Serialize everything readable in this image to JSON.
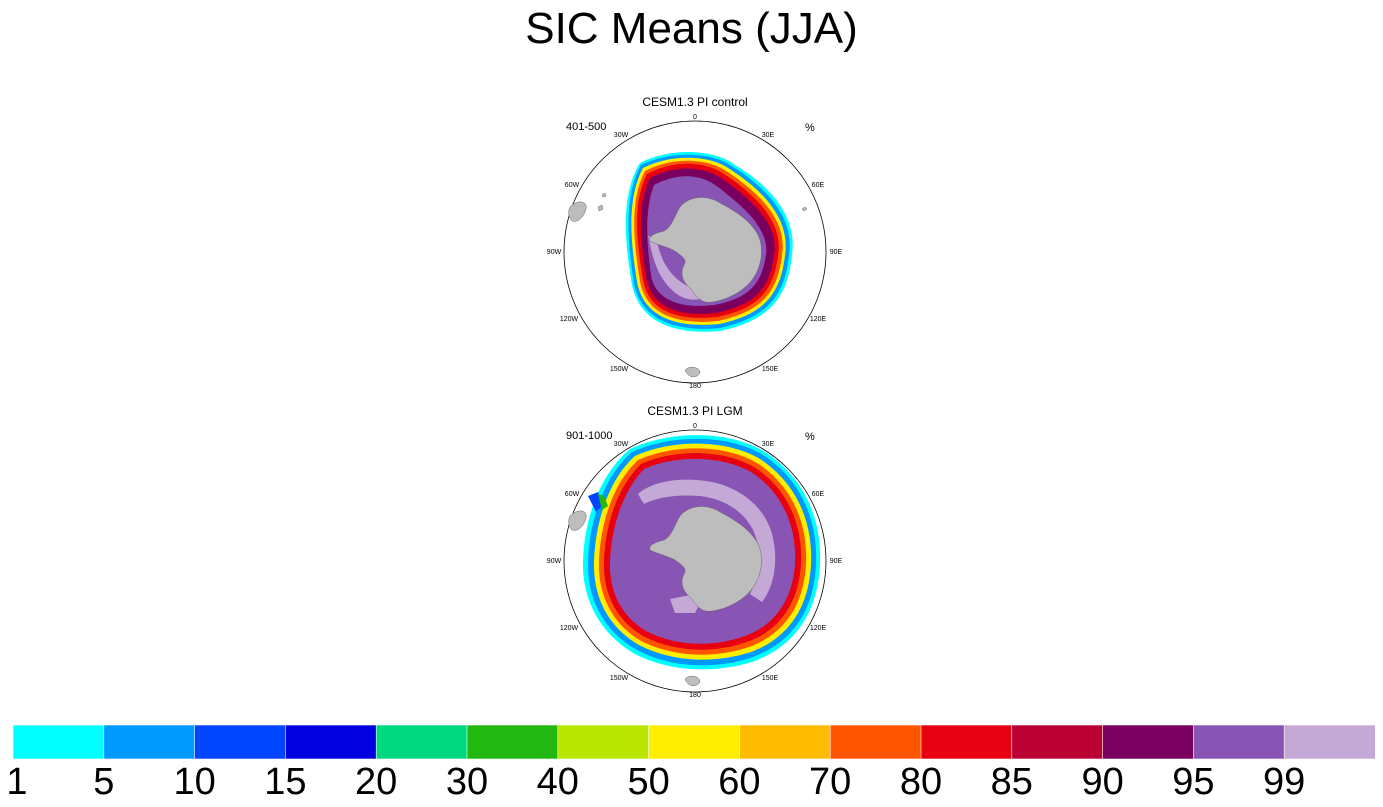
{
  "title": "SIC Means (JJA)",
  "panels": [
    {
      "title": "CESM1.3 PI control",
      "period": "401-500",
      "unit": "%"
    },
    {
      "title": "CESM1.3 PI LGM",
      "period": "901-1000",
      "unit": "%"
    }
  ],
  "longitude_labels": [
    "0",
    "30E",
    "60E",
    "90E",
    "120E",
    "150E",
    "180",
    "150W",
    "120W",
    "90W",
    "60W",
    "30W"
  ],
  "colorbar": {
    "tick_labels": [
      "1",
      "5",
      "10",
      "15",
      "20",
      "30",
      "40",
      "50",
      "60",
      "70",
      "80",
      "85",
      "90",
      "95",
      "99"
    ],
    "colors": [
      "#00ffff",
      "#0099ff",
      "#0044ff",
      "#0000e0",
      "#00d980",
      "#22b811",
      "#b8e600",
      "#ffee00",
      "#ffbb00",
      "#ff5500",
      "#e60012",
      "#bb0033",
      "#7a0060",
      "#8855b5",
      "#c4a9d6"
    ]
  },
  "colors": {
    "land": "#bdbdbd",
    "background": "#ffffff"
  }
}
